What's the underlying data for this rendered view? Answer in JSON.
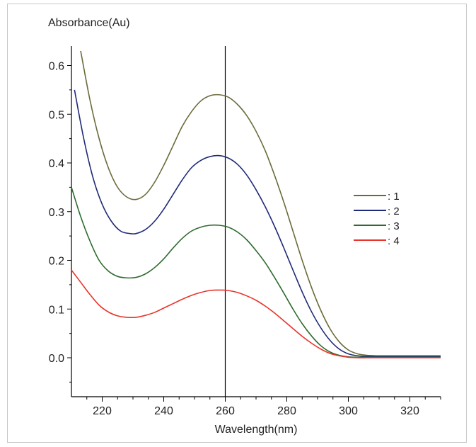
{
  "chart_data": {
    "type": "line",
    "title": "",
    "xlabel": "Wavelength(nm)",
    "ylabel": "Absorbance(Au)",
    "xlim": [
      210,
      330
    ],
    "ylim": [
      -0.08,
      0.64
    ],
    "x_ticks": [
      220,
      240,
      260,
      280,
      300,
      320
    ],
    "y_ticks": [
      0.0,
      0.1,
      0.2,
      0.3,
      0.4,
      0.5,
      0.6
    ],
    "y_tick_labels": [
      "0.0",
      "0.1",
      "0.2",
      "0.3",
      "0.4",
      "0.5",
      "0.6"
    ],
    "grid": false,
    "legend_position": "right",
    "annotations": [
      {
        "type": "vertical-line",
        "x": 260
      }
    ],
    "series": [
      {
        "name": ": 1",
        "color": "#6b6b3a",
        "x": [
          213,
          216,
          219,
          222,
          225,
          228,
          231,
          234,
          237,
          240,
          243,
          246,
          249,
          252,
          255,
          258,
          261,
          264,
          267,
          270,
          273,
          276,
          279,
          282,
          285,
          288,
          291,
          294,
          297,
          300,
          303,
          306,
          309,
          312,
          315,
          320,
          325,
          330
        ],
        "y": [
          0.63,
          0.53,
          0.45,
          0.39,
          0.35,
          0.33,
          0.325,
          0.335,
          0.36,
          0.395,
          0.435,
          0.475,
          0.505,
          0.527,
          0.538,
          0.54,
          0.535,
          0.52,
          0.497,
          0.465,
          0.425,
          0.375,
          0.32,
          0.26,
          0.2,
          0.145,
          0.098,
          0.06,
          0.033,
          0.016,
          0.008,
          0.005,
          0.004,
          0.004,
          0.004,
          0.004,
          0.004,
          0.004
        ]
      },
      {
        "name": ": 2",
        "color": "#1f2a78",
        "x": [
          211,
          214,
          217,
          220,
          223,
          226,
          229,
          231,
          234,
          237,
          240,
          243,
          246,
          249,
          252,
          255,
          258,
          261,
          264,
          267,
          270,
          273,
          276,
          279,
          282,
          285,
          288,
          291,
          294,
          297,
          300,
          303,
          306,
          309,
          312,
          315,
          320,
          325,
          330
        ],
        "y": [
          0.55,
          0.45,
          0.37,
          0.315,
          0.28,
          0.26,
          0.255,
          0.255,
          0.263,
          0.28,
          0.305,
          0.335,
          0.365,
          0.39,
          0.405,
          0.413,
          0.415,
          0.41,
          0.397,
          0.375,
          0.345,
          0.31,
          0.27,
          0.226,
          0.18,
          0.135,
          0.095,
          0.062,
          0.036,
          0.018,
          0.008,
          0.004,
          0.003,
          0.003,
          0.003,
          0.003,
          0.003,
          0.003,
          0.003
        ]
      },
      {
        "name": ": 3",
        "color": "#2e6b2e",
        "x": [
          210,
          213,
          216,
          219,
          222,
          225,
          228,
          231,
          234,
          237,
          240,
          243,
          246,
          249,
          252,
          255,
          258,
          261,
          264,
          267,
          270,
          273,
          276,
          279,
          282,
          285,
          288,
          291,
          294,
          297,
          300,
          303,
          306,
          309,
          312,
          315,
          320,
          325,
          330
        ],
        "y": [
          0.35,
          0.29,
          0.24,
          0.2,
          0.178,
          0.167,
          0.164,
          0.165,
          0.172,
          0.185,
          0.203,
          0.225,
          0.245,
          0.26,
          0.268,
          0.272,
          0.272,
          0.268,
          0.258,
          0.242,
          0.22,
          0.195,
          0.165,
          0.133,
          0.1,
          0.07,
          0.045,
          0.025,
          0.012,
          0.005,
          0.002,
          0.001,
          0.001,
          0.001,
          0.001,
          0.001,
          0.001,
          0.001,
          0.001
        ]
      },
      {
        "name": ": 4",
        "color": "#e8342a",
        "x": [
          210,
          213,
          216,
          219,
          222,
          225,
          228,
          231,
          234,
          237,
          240,
          243,
          246,
          249,
          252,
          255,
          258,
          261,
          264,
          267,
          270,
          273,
          276,
          279,
          282,
          285,
          288,
          291,
          294,
          297,
          300,
          303,
          306,
          309,
          312,
          315,
          320,
          325,
          330
        ],
        "y": [
          0.18,
          0.155,
          0.13,
          0.108,
          0.094,
          0.086,
          0.083,
          0.083,
          0.087,
          0.093,
          0.102,
          0.111,
          0.12,
          0.128,
          0.134,
          0.138,
          0.139,
          0.138,
          0.134,
          0.127,
          0.118,
          0.106,
          0.092,
          0.076,
          0.06,
          0.044,
          0.03,
          0.018,
          0.009,
          0.004,
          0.001,
          0.0,
          0.0,
          0.0,
          0.0,
          0.0,
          0.0,
          0.0,
          0.0
        ]
      }
    ]
  }
}
